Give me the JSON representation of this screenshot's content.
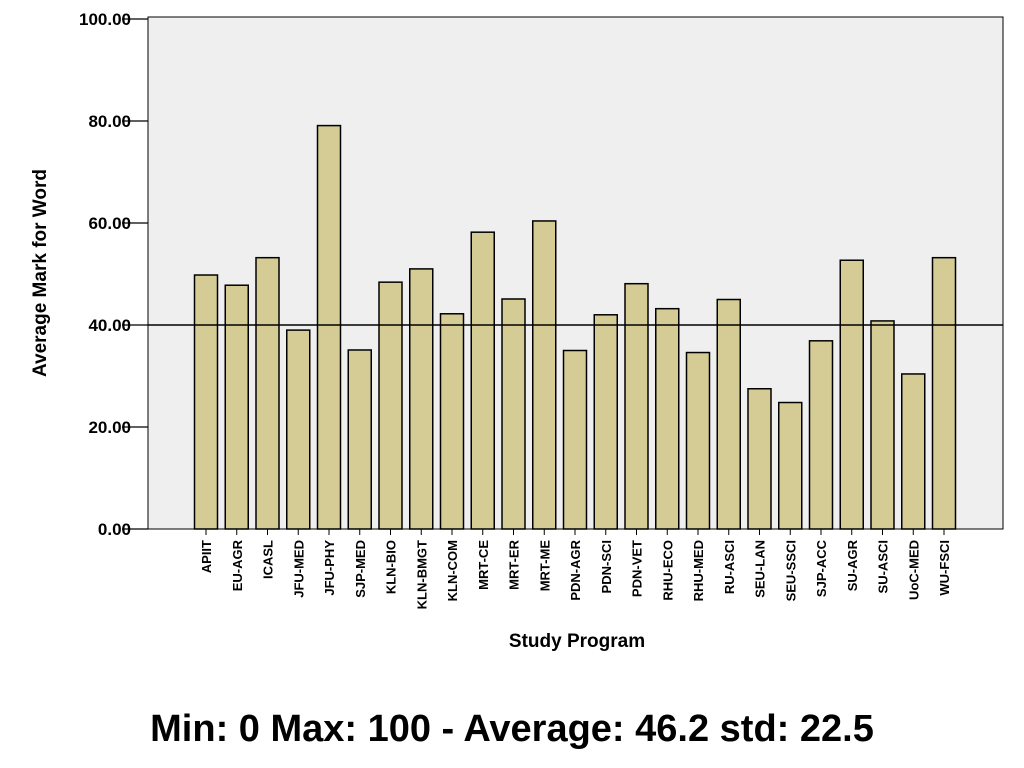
{
  "chart_data": {
    "type": "bar",
    "xlabel": "Study Program",
    "ylabel": "Average Mark for Word",
    "ylim": [
      0,
      100
    ],
    "yticks": [
      "0.00",
      "20.00",
      "40.00",
      "60.00",
      "80.00",
      "100.00"
    ],
    "reference_line": 40,
    "grid": false,
    "categories": [
      "APIIT",
      "EU-AGR",
      "ICASL",
      "JFU-MED",
      "JFU-PHY",
      "SJP-MED",
      "KLN-BIO",
      "KLN-BMGT",
      "KLN-COM",
      "MRT-CE",
      "MRT-ER",
      "MRT-ME",
      "PDN-AGR",
      "PDN-SCI",
      "PDN-VET",
      "RHU-ECO",
      "RHU-MED",
      "RU-ASCI",
      "SEU-LAN",
      "SEU-SSCI",
      "SJP-ACC",
      "SU-AGR",
      "SU-ASCI",
      "UoC-MED",
      "WU-FSCI"
    ],
    "values": [
      49.8,
      47.8,
      53.2,
      39.0,
      79.1,
      35.1,
      48.4,
      51.0,
      42.2,
      58.2,
      45.1,
      60.4,
      35.0,
      42.0,
      48.1,
      43.2,
      34.6,
      45.0,
      27.5,
      24.8,
      36.9,
      52.7,
      40.8,
      30.4,
      53.2
    ],
    "colors": {
      "bar_fill": "#d4cc94",
      "bar_stroke": "#000000",
      "plot_background": "#efefef"
    }
  },
  "caption": "Min: 0 Max: 100 - Average: 46.2 std: 22.5"
}
